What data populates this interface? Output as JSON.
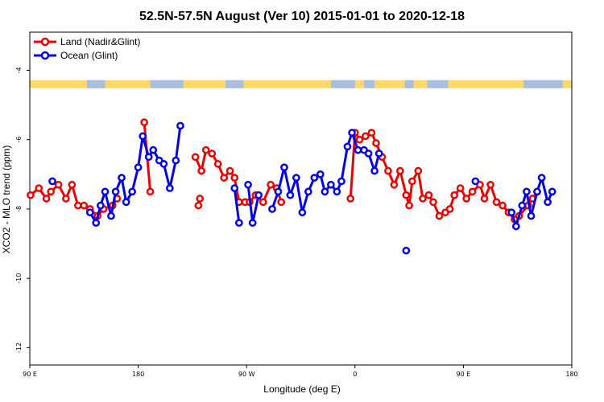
{
  "chart_data": {
    "type": "line",
    "title": "52.5N-57.5N August (Ver 10)   2015-01-01 to 2020-12-18",
    "xlabel": "Longitude (deg E)",
    "ylabel": "XCO2 - MLO trend (ppm)",
    "xlim": [
      90,
      450
    ],
    "ylim": [
      -12.5,
      -2.9
    ],
    "x_ticks": [
      90,
      162,
      234,
      306,
      378,
      450
    ],
    "x_tick_labels": [
      "90 E",
      "180",
      "90 W",
      "0",
      "90 E",
      "180"
    ],
    "y_ticks": [
      -4,
      -6,
      -8,
      -10,
      -12
    ],
    "y_tick_labels": [
      "-4",
      "-6",
      "-8",
      "-10",
      "-12"
    ],
    "legend_position": "top-left",
    "grid": false,
    "land_ocean_strip": {
      "y": -4.4,
      "land_color": "#FFD966",
      "ocean_color": "#A7BEDE",
      "ocean_ranges": [
        [
          128,
          140
        ],
        [
          170,
          192
        ],
        [
          220,
          232
        ],
        [
          290,
          306
        ],
        [
          312,
          319
        ],
        [
          339,
          345
        ],
        [
          354,
          368
        ],
        [
          418,
          444
        ]
      ]
    },
    "series": [
      {
        "name": "Land (Nadir&Glint)",
        "color": "#EE0000",
        "points": [
          [
            [
              90.5,
              -7.6
            ],
            [
              96,
              -7.4
            ],
            [
              101,
              -7.7
            ],
            [
              104,
              -7.5
            ],
            [
              109,
              -7.3
            ],
            [
              114,
              -7.7
            ],
            [
              118,
              -7.3
            ],
            [
              122,
              -7.9
            ],
            [
              126,
              -7.9
            ],
            [
              130,
              -8.0
            ],
            [
              135,
              -8.2
            ],
            [
              139,
              -8.0
            ],
            [
              145,
              -7.9
            ],
            [
              148,
              -7.7
            ]
          ],
          [
            [
              202,
              -7.9
            ]
          ],
          [
            [
              203,
              -7.7
            ]
          ],
          [
            [
              166,
              -5.5
            ],
            [
              170,
              -7.5
            ]
          ],
          [
            [
              200,
              -6.5
            ],
            [
              204,
              -6.9
            ],
            [
              207,
              -6.3
            ],
            [
              211,
              -6.4
            ],
            [
              215,
              -6.7
            ],
            [
              219,
              -7.1
            ],
            [
              223,
              -6.9
            ],
            [
              226,
              -7.1
            ],
            [
              229,
              -7.8
            ],
            [
              233,
              -7.8
            ],
            [
              236,
              -7.8
            ],
            [
              240,
              -7.6
            ],
            [
              245,
              -7.8
            ],
            [
              250,
              -7.3
            ],
            [
              254,
              -7.4
            ],
            [
              257,
              -7.8
            ]
          ],
          [
            [
              303,
              -7.7
            ],
            [
              306,
              -5.8
            ],
            [
              309,
              -6.0
            ],
            [
              313,
              -5.9
            ],
            [
              317,
              -5.8
            ],
            [
              320,
              -6.1
            ],
            [
              324,
              -6.5
            ],
            [
              328,
              -6.9
            ],
            [
              332,
              -7.3
            ],
            [
              336,
              -6.9
            ],
            [
              340,
              -7.6
            ],
            [
              342,
              -7.9
            ],
            [
              344,
              -7.2
            ],
            [
              348,
              -6.9
            ],
            [
              351,
              -7.7
            ],
            [
              355,
              -7.6
            ],
            [
              358,
              -7.8
            ],
            [
              362,
              -8.2
            ],
            [
              366,
              -8.1
            ],
            [
              369,
              -8.0
            ],
            [
              372,
              -7.6
            ],
            [
              376,
              -7.4
            ],
            [
              380,
              -7.7
            ],
            [
              384,
              -7.5
            ],
            [
              389,
              -7.3
            ],
            [
              392,
              -7.7
            ],
            [
              396,
              -7.3
            ],
            [
              400,
              -7.8
            ],
            [
              404,
              -7.9
            ],
            [
              408,
              -8.1
            ],
            [
              412,
              -8.3
            ],
            [
              415,
              -8.2
            ],
            [
              421,
              -7.9
            ],
            [
              424,
              -7.7
            ],
            [
              427,
              -7.5
            ]
          ]
        ]
      },
      {
        "name": "Ocean (Glint)",
        "color": "#0000EE",
        "points": [
          [
            [
              105,
              -7.2
            ]
          ],
          [
            [
              130,
              -8.1
            ],
            [
              134,
              -8.4
            ],
            [
              137,
              -7.9
            ],
            [
              140,
              -7.5
            ],
            [
              144,
              -8.2
            ],
            [
              147,
              -7.5
            ],
            [
              151,
              -7.1
            ],
            [
              154,
              -7.8
            ],
            [
              158,
              -7.5
            ],
            [
              162,
              -6.8
            ],
            [
              165,
              -5.9
            ],
            [
              169,
              -6.5
            ],
            [
              172,
              -6.3
            ],
            [
              176,
              -6.6
            ],
            [
              179,
              -6.7
            ],
            [
              183,
              -7.4
            ],
            [
              187,
              -6.6
            ],
            [
              190,
              -5.6
            ]
          ],
          [
            [
              226,
              -7.4
            ],
            [
              229,
              -8.4
            ]
          ],
          [
            [
              235,
              -7.3
            ],
            [
              238,
              -8.4
            ],
            [
              242,
              -7.6
            ]
          ],
          [
            [
              251,
              -8.0
            ],
            [
              255,
              -7.5
            ],
            [
              259,
              -6.8
            ],
            [
              263,
              -7.6
            ],
            [
              267,
              -7.1
            ],
            [
              271,
              -8.1
            ],
            [
              275,
              -7.5
            ],
            [
              279,
              -7.1
            ],
            [
              283,
              -7.0
            ],
            [
              286,
              -7.5
            ],
            [
              290,
              -7.3
            ],
            [
              294,
              -7.5
            ],
            [
              297,
              -7.2
            ],
            [
              301,
              -6.2
            ],
            [
              304,
              -5.8
            ],
            [
              308,
              -6.3
            ],
            [
              312,
              -6.3
            ],
            [
              315,
              -6.4
            ],
            [
              319,
              -6.9
            ],
            [
              322,
              -6.4
            ]
          ],
          [
            [
              340,
              -9.2
            ]
          ],
          [
            [
              386,
              -7.2
            ]
          ],
          [
            [
              410,
              -8.1
            ],
            [
              413,
              -8.5
            ],
            [
              417,
              -7.9
            ],
            [
              420,
              -7.5
            ],
            [
              423,
              -8.2
            ],
            [
              427,
              -7.5
            ],
            [
              430,
              -7.1
            ],
            [
              434,
              -7.8
            ],
            [
              437,
              -7.5
            ]
          ]
        ]
      }
    ]
  }
}
